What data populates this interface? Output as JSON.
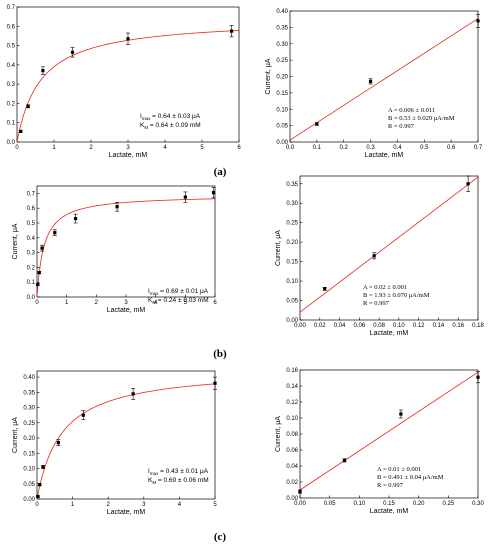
{
  "colors": {
    "fit": "#e8251b",
    "point": "#000000",
    "axis": "#000000"
  },
  "panel_labels": [
    "(a)",
    "(b)",
    "(c)"
  ],
  "chart_data": [
    {
      "type": "scatter",
      "panel": "(a)",
      "fit": "michaelis-menten",
      "xlabel": "Lactate, mM",
      "ylabel": "Current, μA",
      "xlim": [
        0,
        6
      ],
      "ylim": [
        0,
        0.7
      ],
      "xticks": [
        "0",
        "1",
        "2",
        "3",
        "4",
        "5",
        "6"
      ],
      "yticks": [
        "0.0",
        "0.1",
        "0.2",
        "0.3",
        "0.4",
        "0.5",
        "0.6",
        "0.7"
      ],
      "points": [
        {
          "x": 0.1,
          "y": 0.055,
          "err": 0.005
        },
        {
          "x": 0.3,
          "y": 0.185,
          "err": 0.008
        },
        {
          "x": 0.7,
          "y": 0.37,
          "err": 0.02
        },
        {
          "x": 1.5,
          "y": 0.465,
          "err": 0.025
        },
        {
          "x": 3.0,
          "y": 0.535,
          "err": 0.03
        },
        {
          "x": 5.8,
          "y": 0.575,
          "err": 0.03
        }
      ],
      "fit_params": {
        "Imax": 0.64,
        "Km": 0.64
      },
      "annotation": {
        "l1a": "I",
        "l1s": "max",
        "l1b": " = 0.64 ± 0.03 μA",
        "l2a": "K",
        "l2s": "M",
        "l2b": " = 0.64 ± 0.09 mM"
      }
    },
    {
      "type": "scatter",
      "panel": "(a)",
      "fit": "linear",
      "xlabel": "Lactate, mM",
      "ylabel": "Current, μA",
      "xlim": [
        0,
        0.7
      ],
      "ylim": [
        0,
        0.4
      ],
      "xticks": [
        "0.0",
        "0.1",
        "0.2",
        "0.3",
        "0.4",
        "0.5",
        "0.6",
        "0.7"
      ],
      "yticks": [
        "0.00",
        "0.05",
        "0.10",
        "0.15",
        "0.20",
        "0.25",
        "0.30",
        "0.35",
        "0.40"
      ],
      "points": [
        {
          "x": 0.1,
          "y": 0.055,
          "err": 0.004
        },
        {
          "x": 0.3,
          "y": 0.185,
          "err": 0.008
        },
        {
          "x": 0.7,
          "y": 0.37,
          "err": 0.02
        }
      ],
      "fit_params": {
        "A": 0.006,
        "B": 0.53
      },
      "annotation": {
        "l1": "A = 0.006 ± 0.011",
        "l2": "B = 0.53 ± 0.029 μA/mM",
        "l3": "R = 0.997"
      }
    },
    {
      "type": "scatter",
      "panel": "(b)",
      "fit": "michaelis-menten",
      "xlabel": "Lactate, mM",
      "ylabel": "Current, μA",
      "xlim": [
        0,
        6
      ],
      "ylim": [
        0,
        0.75
      ],
      "xticks": [
        "0",
        "1",
        "2",
        "3",
        "4",
        "5",
        "6"
      ],
      "yticks": [
        "0.0",
        "0.1",
        "0.2",
        "0.3",
        "0.4",
        "0.5",
        "0.6",
        "0.7"
      ],
      "points": [
        {
          "x": 0.025,
          "y": 0.085,
          "err": 0.005
        },
        {
          "x": 0.075,
          "y": 0.165,
          "err": 0.008
        },
        {
          "x": 0.17,
          "y": 0.33,
          "err": 0.02
        },
        {
          "x": 0.6,
          "y": 0.435,
          "err": 0.02
        },
        {
          "x": 1.3,
          "y": 0.53,
          "err": 0.03
        },
        {
          "x": 2.7,
          "y": 0.61,
          "err": 0.03
        },
        {
          "x": 5.0,
          "y": 0.675,
          "err": 0.035
        },
        {
          "x": 5.95,
          "y": 0.705,
          "err": 0.035
        }
      ],
      "fit_params": {
        "Imax": 0.69,
        "Km": 0.24
      },
      "annotation": {
        "l1a": "I",
        "l1s": "max",
        "l1b": " = 0.69 ± 0.01 μA",
        "l2a": "K",
        "l2s": "M",
        "l2b": " = 0.24 ± 0.03 mM"
      }
    },
    {
      "type": "scatter",
      "panel": "(b)",
      "fit": "linear",
      "xlabel": "Lactate, mM",
      "ylabel": "Current, μA",
      "xlim": [
        0,
        0.18
      ],
      "ylim": [
        0,
        0.37
      ],
      "xticks": [
        "0.00",
        "0.02",
        "0.04",
        "0.06",
        "0.08",
        "0.10",
        "0.12",
        "0.14",
        "0.16",
        "0.18"
      ],
      "yticks": [
        "0.00",
        "0.05",
        "0.10",
        "0.15",
        "0.20",
        "0.25",
        "0.30",
        "0.35"
      ],
      "points": [
        {
          "x": 0.025,
          "y": 0.08,
          "err": 0.004
        },
        {
          "x": 0.075,
          "y": 0.165,
          "err": 0.008
        },
        {
          "x": 0.17,
          "y": 0.35,
          "err": 0.02
        }
      ],
      "fit_params": {
        "A": 0.02,
        "B": 1.93
      },
      "annotation": {
        "l1": "A = 0.02 ± 0.001",
        "l2": "B = 1.93 ± 0.070 μA/mM",
        "l3": "R = 0.997"
      }
    },
    {
      "type": "scatter",
      "panel": "(c)",
      "fit": "michaelis-menten",
      "xlabel": "Lactate, mM",
      "ylabel": "Current, μA",
      "xlim": [
        0,
        5
      ],
      "ylim": [
        0,
        0.42
      ],
      "xticks": [
        "0",
        "1",
        "2",
        "3",
        "4",
        "5"
      ],
      "yticks": [
        "0.00",
        "0.05",
        "0.10",
        "0.15",
        "0.20",
        "0.25",
        "0.30",
        "0.35",
        "0.40"
      ],
      "points": [
        {
          "x": 0.025,
          "y": 0.008,
          "err": 0.002
        },
        {
          "x": 0.075,
          "y": 0.047,
          "err": 0.003
        },
        {
          "x": 0.17,
          "y": 0.105,
          "err": 0.005
        },
        {
          "x": 0.6,
          "y": 0.185,
          "err": 0.01
        },
        {
          "x": 1.3,
          "y": 0.275,
          "err": 0.015
        },
        {
          "x": 2.7,
          "y": 0.345,
          "err": 0.018
        },
        {
          "x": 5.0,
          "y": 0.38,
          "err": 0.02
        }
      ],
      "fit_params": {
        "Imax": 0.43,
        "Km": 0.69
      },
      "annotation": {
        "l1a": "I",
        "l1s": "max",
        "l1b": " = 0.43 ± 0.01 μA",
        "l2a": "K",
        "l2s": "M",
        "l2b": " = 0.69 ± 0.06 mM"
      }
    },
    {
      "type": "scatter",
      "panel": "(c)",
      "fit": "linear",
      "xlabel": "Lactate, mM",
      "ylabel": "Current, μA",
      "xlim": [
        0,
        0.3
      ],
      "ylim": [
        0,
        0.16
      ],
      "xticks": [
        "0.00",
        "0.05",
        "0.10",
        "0.15",
        "0.20",
        "0.25",
        "0.30"
      ],
      "yticks": [
        "0.00",
        "0.02",
        "0.04",
        "0.06",
        "0.08",
        "0.10",
        "0.12",
        "0.14",
        "0.16"
      ],
      "points": [
        {
          "x": 0.0,
          "y": 0.008,
          "err": 0.002
        },
        {
          "x": 0.075,
          "y": 0.047,
          "err": 0.002
        },
        {
          "x": 0.17,
          "y": 0.105,
          "err": 0.005
        },
        {
          "x": 0.3,
          "y": 0.151,
          "err": 0.007
        }
      ],
      "fit_params": {
        "A": 0.01,
        "B": 0.491
      },
      "annotation": {
        "l1": "A = 0.01 ± 0.001",
        "l2": "B = 0.491 ± 0.04 μA/mM",
        "l3": "R = 0.997"
      }
    }
  ]
}
